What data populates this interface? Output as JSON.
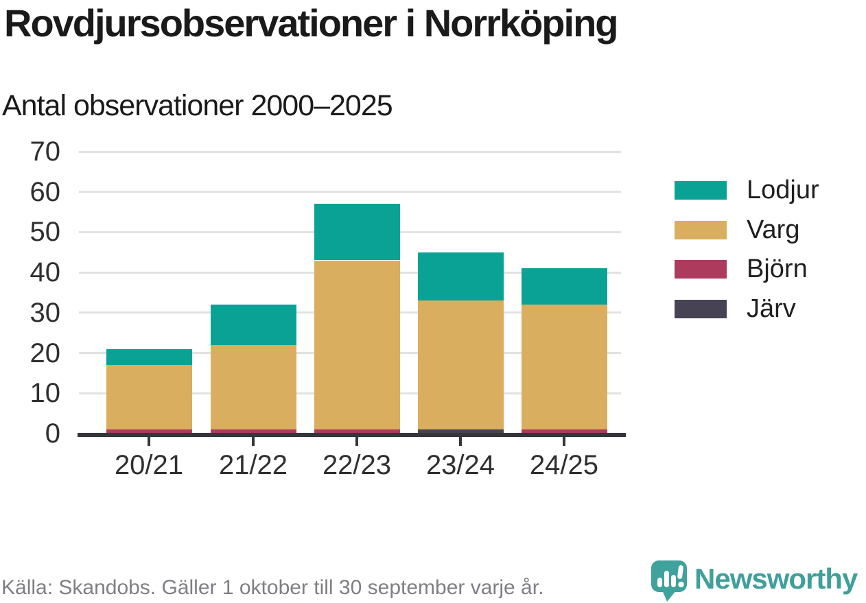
{
  "header": {
    "title": "Rovdjursobservationer i Norrköping",
    "subtitle": "Antal observationer 2000–2025"
  },
  "chart_data": {
    "type": "bar",
    "stacked": true,
    "title": "Rovdjursobservationer i Norrköping",
    "subtitle": "Antal observationer 2000–2025",
    "categories": [
      "20/21",
      "21/22",
      "22/23",
      "23/24",
      "24/25"
    ],
    "series": [
      {
        "name": "Lodjur",
        "color": "#0ba296",
        "values": [
          4,
          10,
          14,
          12,
          9
        ]
      },
      {
        "name": "Varg",
        "color": "#d9ae5e",
        "values": [
          16,
          21,
          42,
          32,
          31
        ]
      },
      {
        "name": "Björn",
        "color": "#ac3b5e",
        "values": [
          1,
          1,
          1,
          0,
          1
        ]
      },
      {
        "name": "Järv",
        "color": "#474354",
        "values": [
          0,
          0,
          0,
          1,
          0
        ]
      }
    ],
    "stack_bottom_to_top": [
      "Järv",
      "Björn",
      "Varg",
      "Lodjur"
    ],
    "totals": [
      21,
      32,
      57,
      45,
      41
    ],
    "ylim": [
      0,
      70
    ],
    "yticks": [
      0,
      10,
      20,
      30,
      40,
      50,
      60,
      70
    ],
    "grid": "horizontal",
    "legend_position": "right"
  },
  "footer": {
    "source": "Källa: Skandobs. Gäller 1 oktober till 30 september varje år.",
    "brand": "Newsworthy",
    "logo_icon": "speech-bubble-bar-chart-icon"
  },
  "colors": {
    "axis": "#35353b",
    "gridline": "#e2e2e2",
    "tick_label": "#2f2f2f",
    "title_text": "#1a1a1a",
    "source_text": "#7e7f85",
    "brand_teal": "#3f9f9a"
  }
}
